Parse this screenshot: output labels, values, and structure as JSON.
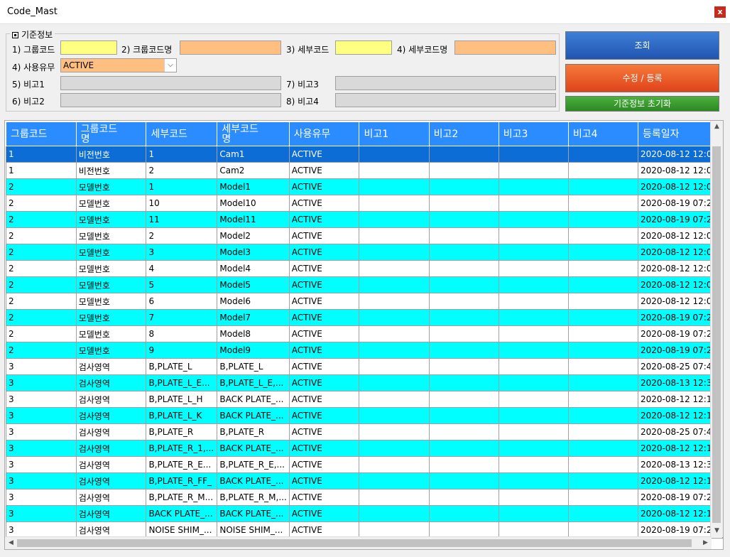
{
  "window": {
    "title": "Code_Mast",
    "close_label": "x"
  },
  "groupbox": {
    "legend": "기준정보"
  },
  "filters": {
    "group_code_label": "1) 그룹코드",
    "group_name_label": "2) 크룹코드명",
    "detail_code_label": "3) 세부코드",
    "detail_name_label": "4) 세부코드명",
    "use_yn_label": "4) 사용유무",
    "use_yn_value": "ACTIVE",
    "remark1_label": "5) 비고1",
    "remark2_label": "6) 비고2",
    "remark3_label": "7) 비고3",
    "remark4_label": "8) 비고4",
    "colors": {
      "key_field": "#ffff80",
      "name_field": "#ffbf80",
      "remark_field": "#d9d9d9"
    }
  },
  "buttons": {
    "search": "조회",
    "save": "수정 / 등록",
    "reset": "기준정보 초기화"
  },
  "grid": {
    "columns": [
      "그룹코드",
      "그룹코드\n명",
      "세부코드",
      "세부코드\n명",
      "사용유무",
      "비고1",
      "비고2",
      "비고3",
      "비고4",
      "등록일자"
    ],
    "rows": [
      [
        "1",
        "비전번호",
        "1",
        "Cam1",
        "ACTIVE",
        "",
        "",
        "",
        "",
        "2020-08-12 12:0..."
      ],
      [
        "1",
        "비전번호",
        "2",
        "Cam2",
        "ACTIVE",
        "",
        "",
        "",
        "",
        "2020-08-12 12:0..."
      ],
      [
        "2",
        "모델번호",
        "1",
        "Model1",
        "ACTIVE",
        "",
        "",
        "",
        "",
        "2020-08-12 12:0..."
      ],
      [
        "2",
        "모델번호",
        "10",
        "Model10",
        "ACTIVE",
        "",
        "",
        "",
        "",
        "2020-08-19 07:2..."
      ],
      [
        "2",
        "모델번호",
        "11",
        "Model11",
        "ACTIVE",
        "",
        "",
        "",
        "",
        "2020-08-19 07:2..."
      ],
      [
        "2",
        "모델번호",
        "2",
        "Model2",
        "ACTIVE",
        "",
        "",
        "",
        "",
        "2020-08-12 12:0..."
      ],
      [
        "2",
        "모델번호",
        "3",
        "Model3",
        "ACTIVE",
        "",
        "",
        "",
        "",
        "2020-08-12 12:0..."
      ],
      [
        "2",
        "모델번호",
        "4",
        "Model4",
        "ACTIVE",
        "",
        "",
        "",
        "",
        "2020-08-12 12:0..."
      ],
      [
        "2",
        "모델번호",
        "5",
        "Model5",
        "ACTIVE",
        "",
        "",
        "",
        "",
        "2020-08-12 12:0..."
      ],
      [
        "2",
        "모델번호",
        "6",
        "Model6",
        "ACTIVE",
        "",
        "",
        "",
        "",
        "2020-08-12 12:0..."
      ],
      [
        "2",
        "모델번호",
        "7",
        "Model7",
        "ACTIVE",
        "",
        "",
        "",
        "",
        "2020-08-19 07:2..."
      ],
      [
        "2",
        "모델번호",
        "8",
        "Model8",
        "ACTIVE",
        "",
        "",
        "",
        "",
        "2020-08-19 07:2..."
      ],
      [
        "2",
        "모델번호",
        "9",
        "Model9",
        "ACTIVE",
        "",
        "",
        "",
        "",
        "2020-08-19 07:2..."
      ],
      [
        "3",
        "검사영역",
        "B,PLATE_L",
        "B,PLATE_L",
        "ACTIVE",
        "",
        "",
        "",
        "",
        "2020-08-25 07:4..."
      ],
      [
        "3",
        "검사영역",
        "B,PLATE_L_E...",
        "B,PLATE_L_E,...",
        "ACTIVE",
        "",
        "",
        "",
        "",
        "2020-08-13 12:3..."
      ],
      [
        "3",
        "검사영역",
        "B,PLATE_L_H",
        "BACK PLATE_...",
        "ACTIVE",
        "",
        "",
        "",
        "",
        "2020-08-12 12:1..."
      ],
      [
        "3",
        "검사영역",
        "B,PLATE_L_K",
        "BACK PLATE_...",
        "ACTIVE",
        "",
        "",
        "",
        "",
        "2020-08-12 12:1..."
      ],
      [
        "3",
        "검사영역",
        "B,PLATE_R",
        "B,PLATE_R",
        "ACTIVE",
        "",
        "",
        "",
        "",
        "2020-08-25 07:4..."
      ],
      [
        "3",
        "검사영역",
        "B,PLATE_R_1,...",
        "BACK PLATE_...",
        "ACTIVE",
        "",
        "",
        "",
        "",
        "2020-08-12 12:1..."
      ],
      [
        "3",
        "검사영역",
        "B,PLATE_R_E...",
        "B,PLATE_R_E,...",
        "ACTIVE",
        "",
        "",
        "",
        "",
        "2020-08-13 12:3..."
      ],
      [
        "3",
        "검사영역",
        "B,PLATE_R_FF_",
        "BACK PLATE_...",
        "ACTIVE",
        "",
        "",
        "",
        "",
        "2020-08-12 12:1..."
      ],
      [
        "3",
        "검사영역",
        "B,PLATE_R_M...",
        "B,PLATE_R_M,...",
        "ACTIVE",
        "",
        "",
        "",
        "",
        "2020-08-19 07:2..."
      ],
      [
        "3",
        "검사영역",
        "BACK PLATE_...",
        "BACK PLATE_...",
        "ACTIVE",
        "",
        "",
        "",
        "",
        "2020-08-12 12:1..."
      ],
      [
        "3",
        "검사영역",
        "NOISE SHIM_...",
        "NOISE SHIM_...",
        "ACTIVE",
        "",
        "",
        "",
        "",
        "2020-08-19 07:2..."
      ]
    ],
    "selected_row": 0,
    "row_colors": {
      "even": "#00ffff",
      "odd": "#ffffff",
      "selected": "#0c6dd6",
      "header": "#2a8cff"
    }
  }
}
